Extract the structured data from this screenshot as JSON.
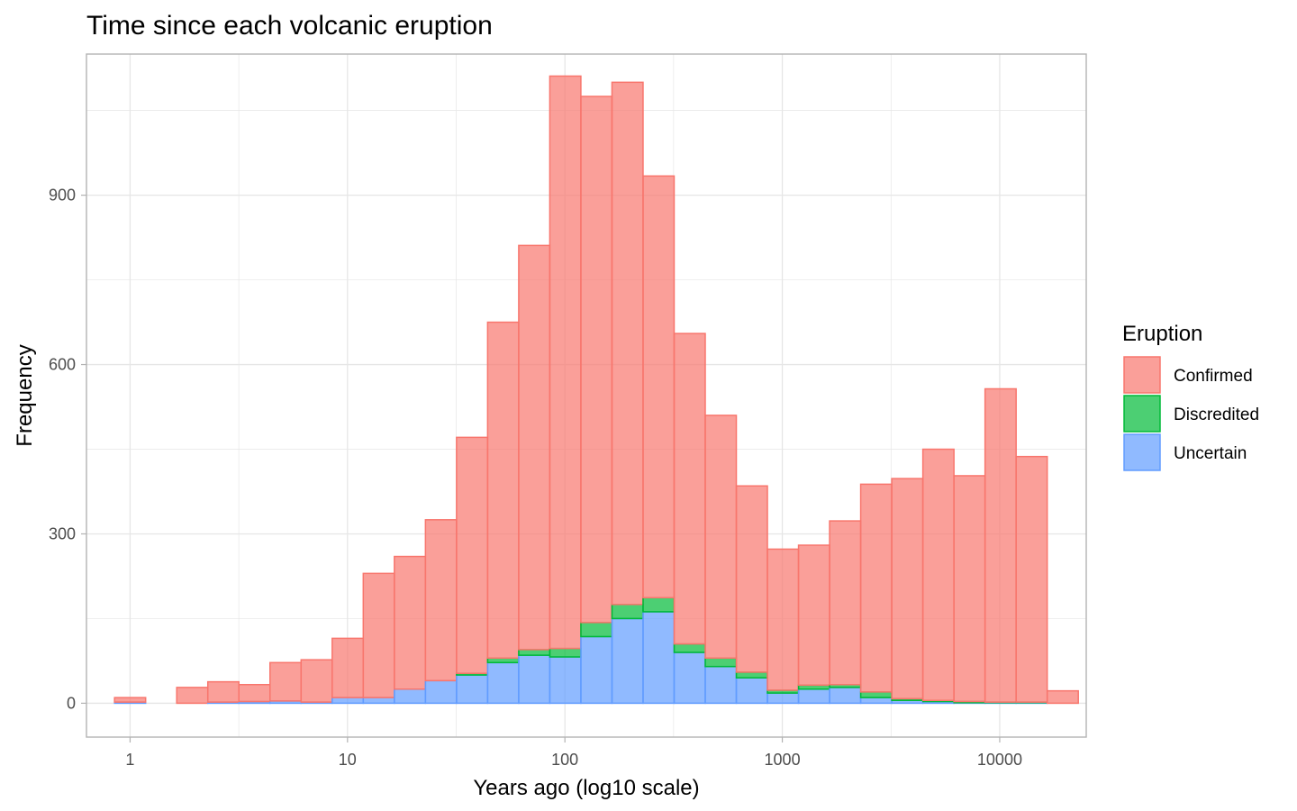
{
  "chart_data": {
    "type": "bar",
    "subtype": "stacked-histogram",
    "title": "Time since each volcanic eruption",
    "xlabel": "Years ago (log10 scale)",
    "ylabel": "Frequency",
    "x_scale": "log10",
    "x_ticks": [
      1,
      10,
      100,
      1000,
      10000
    ],
    "x_tick_labels": [
      "1",
      "10",
      "100",
      "1000",
      "10000"
    ],
    "y_ticks": [
      0,
      300,
      600,
      900
    ],
    "y_tick_labels": [
      "0",
      "300",
      "600",
      "900"
    ],
    "xlim": [
      0.63,
      25000
    ],
    "ylim": [
      -60,
      1150
    ],
    "grid": true,
    "legend": {
      "title": "Eruption",
      "position": "right"
    },
    "bins_log10": {
      "first_center": 0,
      "bin_width": 0.143,
      "count": 30
    },
    "series": [
      {
        "name": "Uncertain",
        "fill": "#619CFF",
        "stroke": "#619CFF",
        "values": [
          2,
          0,
          0,
          2,
          3,
          4,
          2,
          10,
          10,
          25,
          40,
          50,
          72,
          85,
          82,
          118,
          150,
          162,
          90,
          65,
          45,
          18,
          25,
          28,
          10,
          5,
          3,
          1,
          1,
          1
        ]
      },
      {
        "name": "Discredited",
        "fill": "#00BA38",
        "stroke": "#00BA38",
        "values": [
          0,
          0,
          0,
          0,
          0,
          0,
          0,
          0,
          0,
          0,
          0,
          3,
          8,
          10,
          15,
          25,
          25,
          25,
          15,
          15,
          10,
          5,
          7,
          5,
          10,
          3,
          2,
          2,
          1,
          1
        ]
      },
      {
        "name": "Confirmed",
        "fill": "#F8766D",
        "stroke": "#F8766D",
        "values": [
          8,
          0,
          28,
          36,
          30,
          68,
          75,
          105,
          220,
          235,
          285,
          418,
          595,
          716,
          1014,
          932,
          925,
          747,
          550,
          430,
          330,
          250,
          248,
          290,
          368,
          390,
          445,
          400,
          555,
          435
        ]
      }
    ],
    "extra_bin": {
      "series": "Confirmed",
      "value": 22
    },
    "colors": {
      "background": "#ffffff",
      "grid": "#e6e6e6",
      "panel_border": "#b3b3b3",
      "bar_opacity": 0.7
    }
  }
}
